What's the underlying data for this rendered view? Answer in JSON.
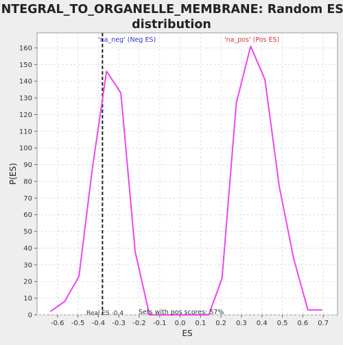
{
  "chart_data": {
    "type": "line",
    "title": "INTEGRAL_TO_ORGANELLE_MEMBRANE: Random ES distribution",
    "title_lines": [
      "INTEGRAL_TO_ORGANELLE_MEMBRANE: Random ES",
      "distribution"
    ],
    "xlabel": "ES",
    "ylabel": "P(ES)",
    "xlim": [
      -0.7,
      0.77
    ],
    "ylim": [
      0,
      169
    ],
    "x_ticks": [
      -0.6,
      -0.5,
      -0.4,
      -0.3,
      -0.2,
      -0.1,
      0.0,
      0.1,
      0.2,
      0.3,
      0.4,
      0.5,
      0.6,
      0.7
    ],
    "x_tick_labels": [
      "-0.6",
      "-0.5",
      "-0.4",
      "-0.3",
      "-0.2",
      "-0.1",
      "0.0",
      "0.1",
      "0.2",
      "0.3",
      "0.4",
      "0.5",
      "0.6",
      "0.7"
    ],
    "y_ticks": [
      0,
      10,
      20,
      30,
      40,
      50,
      60,
      70,
      80,
      90,
      100,
      110,
      120,
      130,
      140,
      150,
      160
    ],
    "y_tick_labels": [
      "0",
      "10",
      "20",
      "30",
      "40",
      "50",
      "60",
      "70",
      "80",
      "90",
      "100",
      "110",
      "120",
      "130",
      "140",
      "150",
      "160"
    ],
    "grid": true,
    "series": [
      {
        "color": "#ee44ee",
        "x": [
          -0.635,
          -0.565,
          -0.495,
          -0.43,
          -0.36,
          -0.29,
          -0.22,
          -0.15,
          0.14,
          0.205,
          0.275,
          0.345,
          0.415,
          0.485,
          0.555,
          0.625,
          0.695
        ],
        "y": [
          2,
          8,
          23,
          87,
          146,
          133,
          38,
          0,
          0,
          22,
          127,
          161,
          141,
          77,
          34,
          3,
          3
        ]
      }
    ],
    "reference_line": {
      "x": -0.38,
      "color": "#222222",
      "style": "dashed"
    },
    "annotations": {
      "neg_label": "'na_neg' (Neg ES)",
      "neg_color": "#3333cc",
      "pos_label": "'na_pos' (Pos ES)",
      "pos_color": "#dd3333",
      "real_es_label": "Real ES -0.4",
      "pos_scores_label": "Sets with pos scores: 57%"
    }
  }
}
